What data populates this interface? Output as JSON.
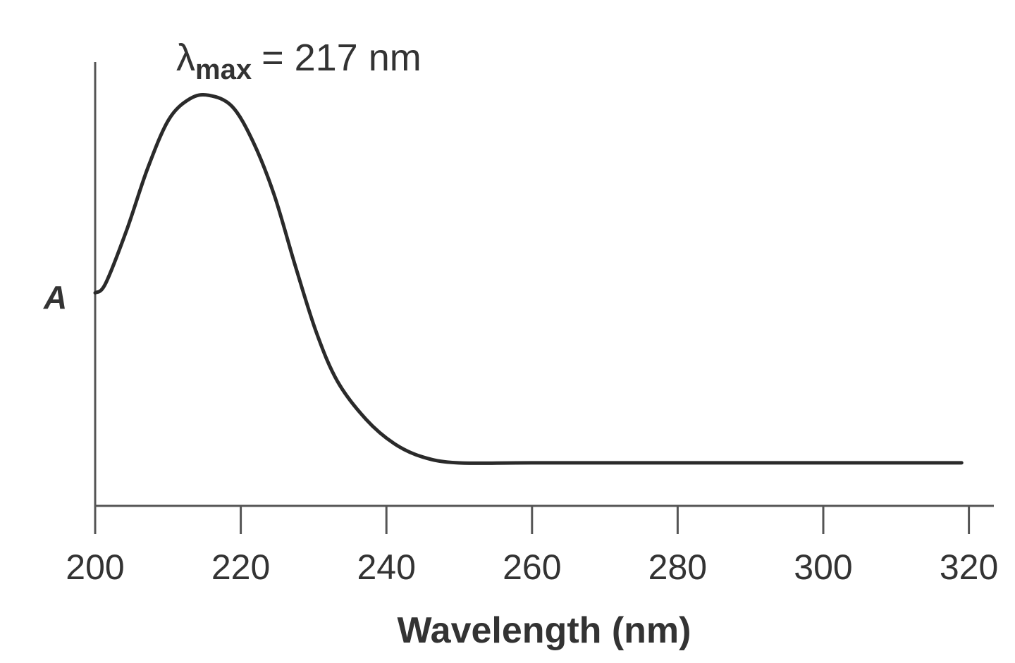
{
  "chart_data": {
    "type": "line",
    "title": "",
    "xlabel": "Wavelength (nm)",
    "ylabel": "A",
    "xlim": [
      200,
      322
    ],
    "ylim": [
      0,
      1
    ],
    "xticks": [
      200,
      220,
      240,
      260,
      280,
      300,
      320
    ],
    "xtick_labels": [
      "200",
      "220",
      "240",
      "260",
      "280",
      "300",
      "320"
    ],
    "grid": false,
    "annotation": {
      "symbol": "λ",
      "subscript": "max",
      "text": "= 217 nm",
      "x": 217
    },
    "series": [
      {
        "color": "#2a2a2a",
        "x": [
          200,
          201.4,
          204.3,
          207.2,
          210.1,
          213,
          215.6,
          218.8,
          221.7,
          224.6,
          227.5,
          230.4,
          233.3,
          237.2,
          241.1,
          245,
          249.8,
          260,
          280,
          300,
          319
        ],
        "y": [
          0.48,
          0.5,
          0.62,
          0.76,
          0.87,
          0.917,
          0.925,
          0.9,
          0.82,
          0.7,
          0.54,
          0.39,
          0.28,
          0.195,
          0.14,
          0.11,
          0.097,
          0.097,
          0.097,
          0.097,
          0.097
        ]
      }
    ]
  }
}
